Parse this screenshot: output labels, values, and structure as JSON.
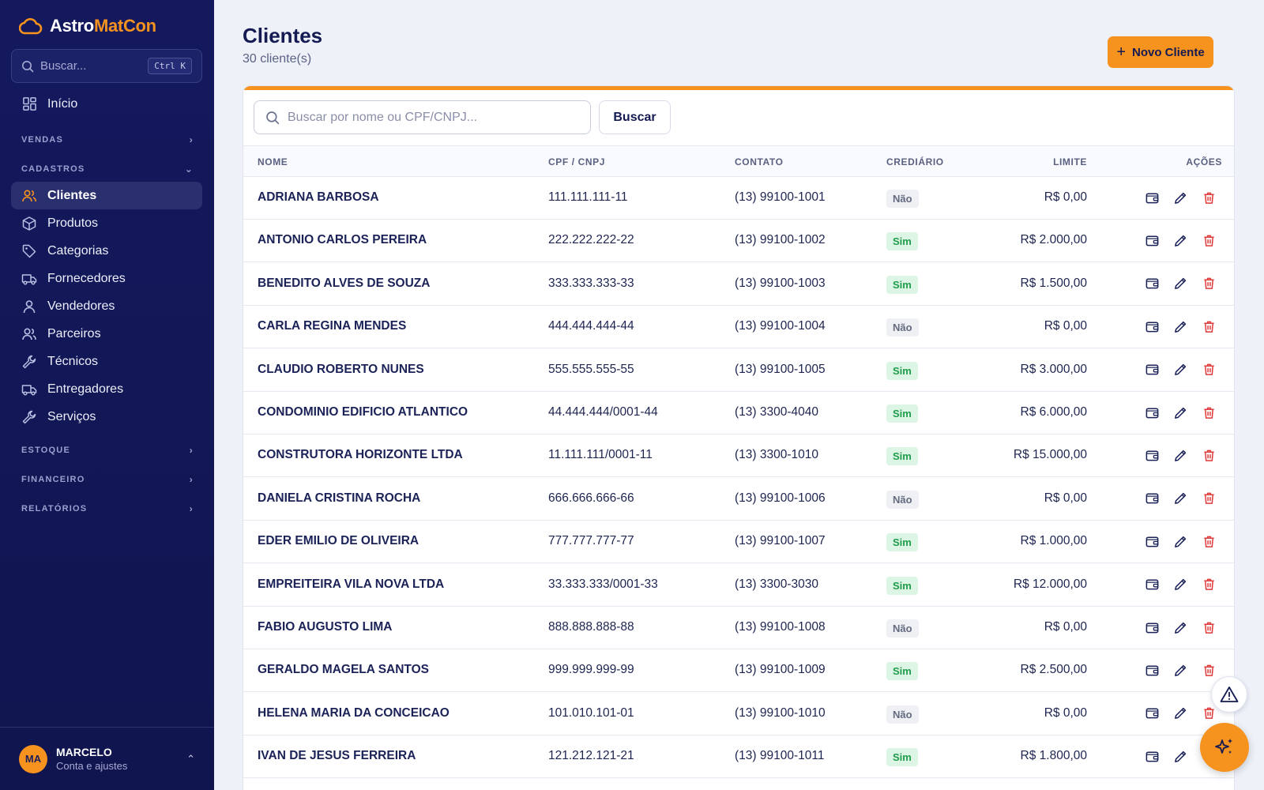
{
  "app": {
    "logo_part1": "Astro",
    "logo_part2": "MatCon",
    "brand_color": "#f6921e",
    "sidebar_color": "#14195e"
  },
  "sidebar": {
    "search_placeholder": "Buscar...",
    "search_shortcut": "Ctrl K",
    "home_label": "Início",
    "sections": {
      "vendas": "VENDAS",
      "cadastros": "CADASTROS",
      "estoque": "ESTOQUE",
      "financeiro": "FINANCEIRO",
      "relatorios": "RELATÓRIOS"
    },
    "cadastros_items": [
      {
        "label": "Clientes",
        "icon": "users-icon",
        "active": true
      },
      {
        "label": "Produtos",
        "icon": "box-icon",
        "active": false
      },
      {
        "label": "Categorias",
        "icon": "tag-icon",
        "active": false
      },
      {
        "label": "Fornecedores",
        "icon": "truck-icon",
        "active": false
      },
      {
        "label": "Vendedores",
        "icon": "user-icon",
        "active": false
      },
      {
        "label": "Parceiros",
        "icon": "users-icon",
        "active": false
      },
      {
        "label": "Técnicos",
        "icon": "wrench-icon",
        "active": false
      },
      {
        "label": "Entregadores",
        "icon": "truck-icon",
        "active": false
      },
      {
        "label": "Serviços",
        "icon": "wrench-icon",
        "active": false
      }
    ],
    "user": {
      "initials": "MA",
      "name": "MARCELO",
      "subtitle": "Conta e ajustes"
    }
  },
  "main": {
    "title": "Clientes",
    "subtitle": "30 cliente(s)",
    "new_button": "Novo Cliente",
    "table_search_placeholder": "Buscar por nome ou CPF/CNPJ...",
    "search_button": "Buscar",
    "columns": {
      "name": "NOME",
      "doc": "CPF / CNPJ",
      "contact": "CONTATO",
      "credit": "CREDIÁRIO",
      "limit": "LIMITE",
      "actions": "AÇÕES"
    },
    "rows": [
      {
        "name": "ADRIANA BARBOSA",
        "doc": "111.111.111-11",
        "contact": "(13) 99100-1001",
        "credit": "Não",
        "limit": "R$ 0,00"
      },
      {
        "name": "ANTONIO CARLOS PEREIRA",
        "doc": "222.222.222-22",
        "contact": "(13) 99100-1002",
        "credit": "Sim",
        "limit": "R$ 2.000,00"
      },
      {
        "name": "BENEDITO ALVES DE SOUZA",
        "doc": "333.333.333-33",
        "contact": "(13) 99100-1003",
        "credit": "Sim",
        "limit": "R$ 1.500,00"
      },
      {
        "name": "CARLA REGINA MENDES",
        "doc": "444.444.444-44",
        "contact": "(13) 99100-1004",
        "credit": "Não",
        "limit": "R$ 0,00"
      },
      {
        "name": "CLAUDIO ROBERTO NUNES",
        "doc": "555.555.555-55",
        "contact": "(13) 99100-1005",
        "credit": "Sim",
        "limit": "R$ 3.000,00"
      },
      {
        "name": "CONDOMINIO EDIFICIO ATLANTICO",
        "doc": "44.444.444/0001-44",
        "contact": "(13) 3300-4040",
        "credit": "Sim",
        "limit": "R$ 6.000,00"
      },
      {
        "name": "CONSTRUTORA HORIZONTE LTDA",
        "doc": "11.111.111/0001-11",
        "contact": "(13) 3300-1010",
        "credit": "Sim",
        "limit": "R$ 15.000,00"
      },
      {
        "name": "DANIELA CRISTINA ROCHA",
        "doc": "666.666.666-66",
        "contact": "(13) 99100-1006",
        "credit": "Não",
        "limit": "R$ 0,00"
      },
      {
        "name": "EDER EMILIO DE OLIVEIRA",
        "doc": "777.777.777-77",
        "contact": "(13) 99100-1007",
        "credit": "Sim",
        "limit": "R$ 1.000,00"
      },
      {
        "name": "EMPREITEIRA VILA NOVA LTDA",
        "doc": "33.333.333/0001-33",
        "contact": "(13) 3300-3030",
        "credit": "Sim",
        "limit": "R$ 12.000,00"
      },
      {
        "name": "FABIO AUGUSTO LIMA",
        "doc": "888.888.888-88",
        "contact": "(13) 99100-1008",
        "credit": "Não",
        "limit": "R$ 0,00"
      },
      {
        "name": "GERALDO MAGELA SANTOS",
        "doc": "999.999.999-99",
        "contact": "(13) 99100-1009",
        "credit": "Sim",
        "limit": "R$ 2.500,00"
      },
      {
        "name": "HELENA MARIA DA CONCEICAO",
        "doc": "101.010.101-01",
        "contact": "(13) 99100-1010",
        "credit": "Não",
        "limit": "R$ 0,00"
      },
      {
        "name": "IVAN DE JESUS FERREIRA",
        "doc": "121.212.121-21",
        "contact": "(13) 99100-1011",
        "credit": "Sim",
        "limit": "R$ 1.800,00"
      }
    ]
  }
}
